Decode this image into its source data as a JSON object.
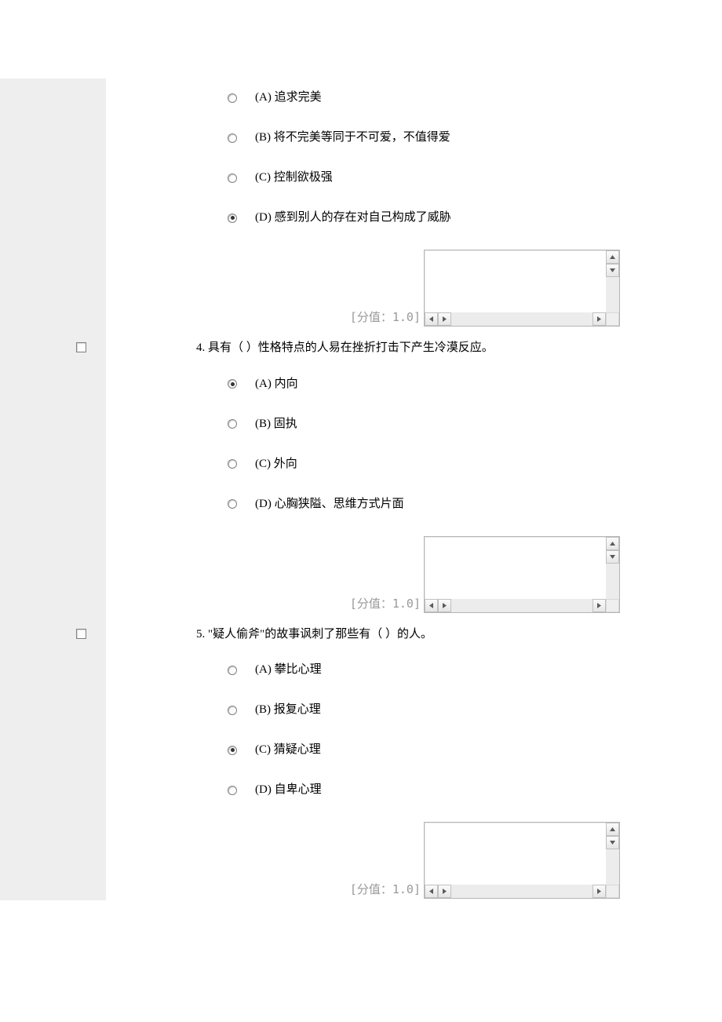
{
  "score_prefix": "[分值：",
  "score_suffix": "]",
  "questions": [
    {
      "number": "",
      "text": "",
      "hasCheckbox": false,
      "options": [
        {
          "prefix": "(A)",
          "text": "追求完美",
          "selected": false
        },
        {
          "prefix": "(B)",
          "text": "将不完美等同于不可爱，不值得爱",
          "selected": false
        },
        {
          "prefix": "(C)",
          "text": "控制欲极强",
          "selected": false
        },
        {
          "prefix": "(D)",
          "text": "感到别人的存在对自己构成了威胁",
          "selected": true
        }
      ],
      "score": "1.0"
    },
    {
      "number": "4.",
      "text": "具有（ ）性格特点的人易在挫折打击下产生冷漠反应。",
      "hasCheckbox": true,
      "options": [
        {
          "prefix": "(A)",
          "text": "内向",
          "selected": true
        },
        {
          "prefix": "(B)",
          "text": "固执",
          "selected": false
        },
        {
          "prefix": "(C)",
          "text": "外向",
          "selected": false
        },
        {
          "prefix": "(D)",
          "text": "心胸狭隘、思维方式片面",
          "selected": false
        }
      ],
      "score": "1.0"
    },
    {
      "number": "5.",
      "text": "\"疑人偷斧\"的故事讽刺了那些有（ ）的人。",
      "hasCheckbox": true,
      "options": [
        {
          "prefix": "(A)",
          "text": "攀比心理",
          "selected": false
        },
        {
          "prefix": "(B)",
          "text": "报复心理",
          "selected": false
        },
        {
          "prefix": "(C)",
          "text": "猜疑心理",
          "selected": true
        },
        {
          "prefix": "(D)",
          "text": "自卑心理",
          "selected": false
        }
      ],
      "score": "1.0"
    }
  ]
}
